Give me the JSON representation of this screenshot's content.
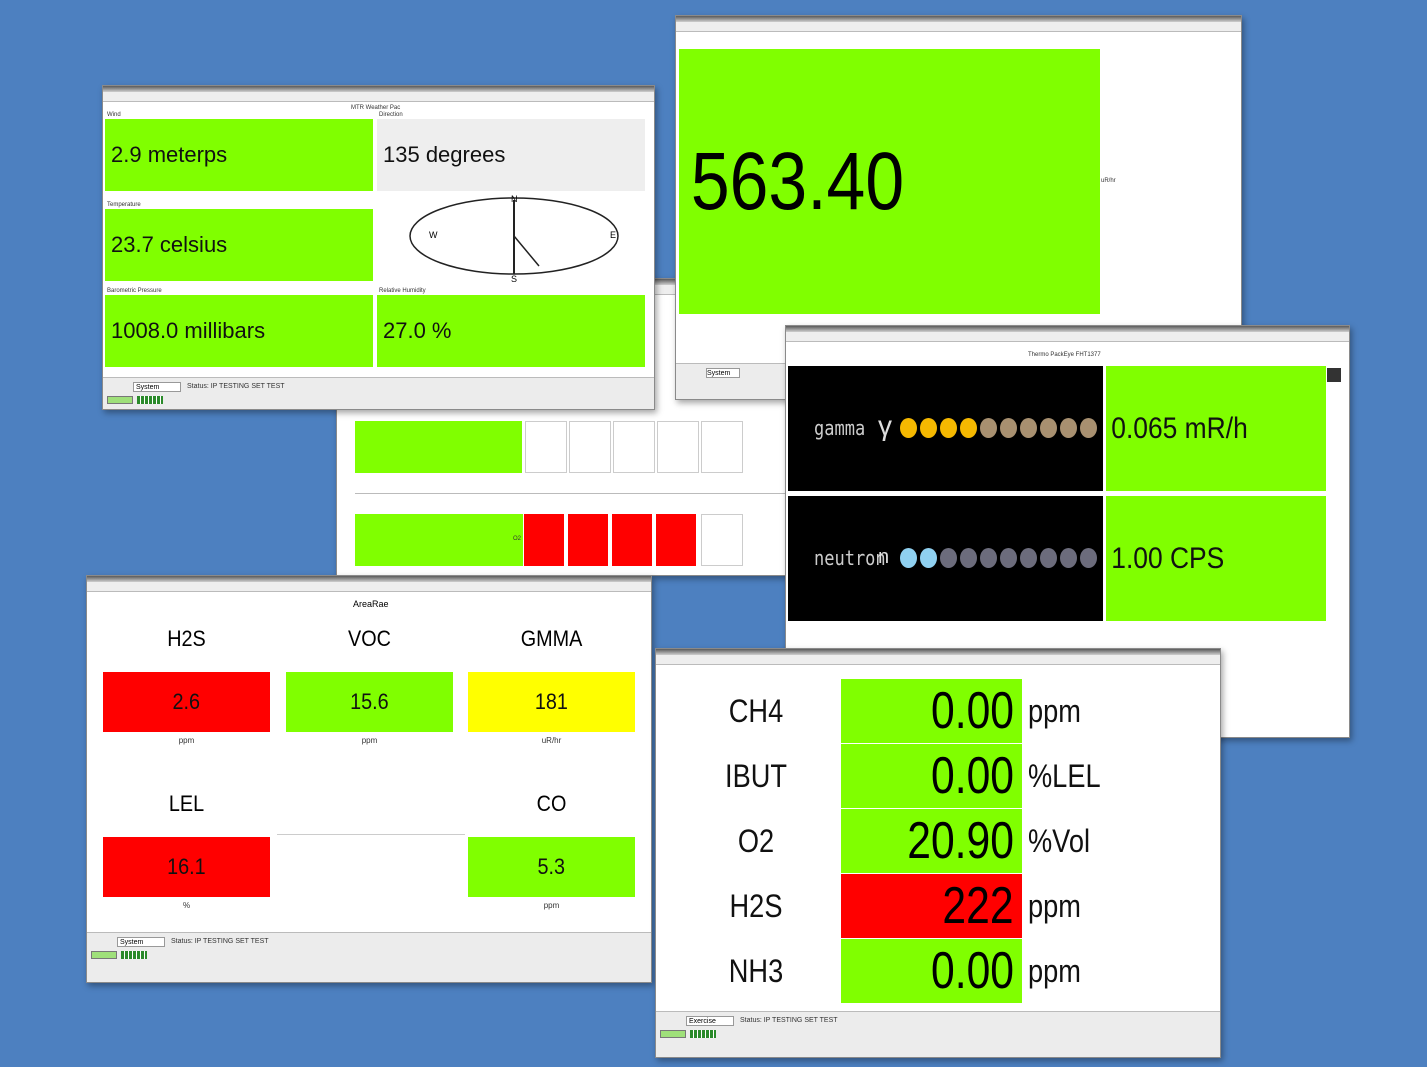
{
  "weather": {
    "title": "MTR Weather Pac",
    "wind_label": "Wind",
    "wind": "2.9 meterps",
    "direction_label": "Direction",
    "direction": "135 degrees",
    "temperature_label": "Temperature",
    "temperature": "23.7 celsius",
    "pressure_label": "Barometric Pressure",
    "pressure": "1008.0 millibars",
    "humidity_label": "Relative Humidity",
    "humidity": "27.0 %",
    "compass": [
      "N",
      "E",
      "S",
      "W"
    ],
    "mode": "System",
    "status": "Status: IP TESTING SET TEST"
  },
  "background": {
    "gas_label": "O2"
  },
  "dose": {
    "value": "563.40",
    "unit": "uR/hr",
    "mode": "System"
  },
  "radiation": {
    "title": "Thermo PackEye FHT1377",
    "rows": [
      {
        "label": "gamma",
        "symbol": "γ",
        "value": "0.065 mR/h"
      },
      {
        "label": "neutron",
        "symbol": "n",
        "value": "1.00 CPS"
      }
    ]
  },
  "arearae": {
    "title": "AreaRae",
    "sensors": [
      {
        "name": "H2S",
        "value": "2.6",
        "unit": "ppm",
        "color": "#ff0000"
      },
      {
        "name": "VOC",
        "value": "15.6",
        "unit": "ppm",
        "color": "#80ff00"
      },
      {
        "name": "GMMA",
        "value": "181",
        "unit": "uR/hr",
        "color": "#ffff00"
      },
      {
        "name": "LEL",
        "value": "16.1",
        "unit": "%",
        "color": "#ff0000"
      },
      {
        "name": "CO",
        "value": "5.3",
        "unit": "ppm",
        "color": "#80ff00"
      }
    ],
    "mode": "System",
    "status": "Status: IP TESTING SET TEST"
  },
  "gas": {
    "rows": [
      {
        "name": "CH4",
        "value": "0.00",
        "unit": "ppm",
        "color": "#80ff00"
      },
      {
        "name": "IBUT",
        "value": "0.00",
        "unit": "%LEL",
        "color": "#80ff00"
      },
      {
        "name": "O2",
        "value": "20.90",
        "unit": "%Vol",
        "color": "#80ff00"
      },
      {
        "name": "H2S",
        "value": "222",
        "unit": "ppm",
        "color": "#ff0000"
      },
      {
        "name": "NH3",
        "value": "0.00",
        "unit": "ppm",
        "color": "#80ff00"
      }
    ],
    "mode": "Exercise",
    "status": "Status: IP TESTING SET TEST"
  }
}
